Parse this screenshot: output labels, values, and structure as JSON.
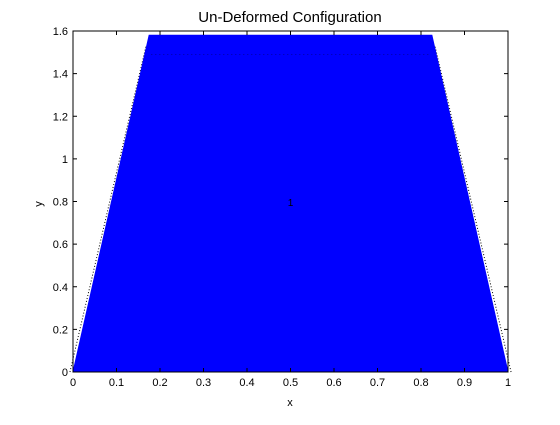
{
  "chart_data": {
    "type": "area",
    "title": "Un-Deformed Configuration",
    "xlabel": "x",
    "ylabel": "y",
    "xlim": [
      0,
      1
    ],
    "ylim": [
      0,
      1.6
    ],
    "grid": false,
    "x_ticks": [
      "0",
      "0.1",
      "0.2",
      "0.3",
      "0.4",
      "0.5",
      "0.6",
      "0.7",
      "0.8",
      "0.9",
      "1"
    ],
    "y_ticks": [
      "0",
      "0.2",
      "0.4",
      "0.6",
      "0.8",
      "1",
      "1.2",
      "1.4",
      "1.6"
    ],
    "shape": {
      "name": "trapezoid",
      "fill": "#0000ff",
      "vertices": [
        [
          0,
          0
        ],
        [
          1,
          0
        ],
        [
          0.825,
          1.58
        ],
        [
          0.175,
          1.58
        ]
      ]
    },
    "annotations": [
      {
        "text": "1",
        "x": 0.5,
        "y": 0.78
      }
    ]
  }
}
